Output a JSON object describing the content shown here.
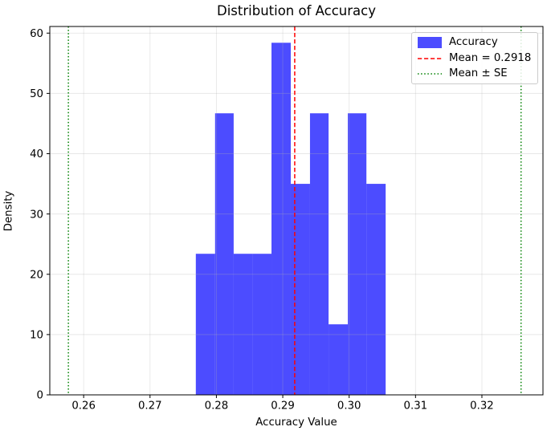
{
  "chart_data": {
    "type": "bar",
    "subtype": "histogram-density",
    "title": "Distribution of Accuracy",
    "xlabel": "Accuracy Value",
    "ylabel": "Density",
    "xlim": [
      0.2549,
      0.3292
    ],
    "ylim": [
      0,
      61.1
    ],
    "grid": true,
    "x_tick_values": [
      0.26,
      0.27,
      0.28,
      0.29,
      0.3,
      0.31,
      0.32
    ],
    "x_tick_labels": [
      "0.26",
      "0.27",
      "0.28",
      "0.29",
      "0.30",
      "0.31",
      "0.32"
    ],
    "y_tick_values": [
      0,
      10,
      20,
      30,
      40,
      50,
      60
    ],
    "y_tick_labels": [
      "0",
      "10",
      "20",
      "30",
      "40",
      "50",
      "60"
    ],
    "bins": {
      "edges": [
        0.2769,
        0.2798,
        0.2826,
        0.2855,
        0.2883,
        0.2912,
        0.2941,
        0.2969,
        0.2998,
        0.3026,
        0.3055
      ],
      "densities": [
        23.4,
        46.7,
        23.4,
        23.4,
        58.4,
        35.0,
        46.7,
        11.7,
        46.7,
        35.0
      ],
      "counts": [
        2,
        4,
        2,
        2,
        5,
        3,
        4,
        1,
        4,
        3
      ]
    },
    "mean_line": {
      "value": 0.2918,
      "label": "Mean = 0.2918",
      "color": "#ff0000",
      "style": "dashed"
    },
    "se_lines": {
      "values": [
        0.2577,
        0.3259
      ],
      "label": "Mean ± SE",
      "color": "#008000",
      "style": "dotted"
    },
    "colors": {
      "bar": "#0000ff",
      "bar_alpha": 0.7,
      "grid": "#b0b0b0",
      "grid_alpha": 0.3,
      "spine": "#000000",
      "text": "#000000",
      "legend_border": "#cccccc"
    },
    "legend": [
      {
        "label": "Accuracy",
        "swatch": "patch",
        "color": "#0000ff"
      },
      {
        "label": "Mean = 0.2918",
        "swatch": "dashed-line",
        "color": "#ff0000"
      },
      {
        "label": "Mean ± SE",
        "swatch": "dotted-line",
        "color": "#008000"
      }
    ]
  }
}
